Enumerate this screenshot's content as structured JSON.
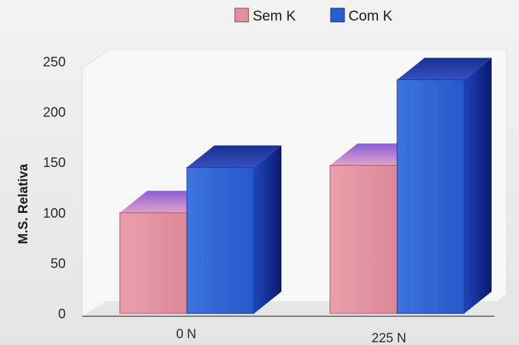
{
  "chart_data": {
    "type": "bar",
    "categories": [
      "0 N",
      "225 N"
    ],
    "series": [
      {
        "name": "Sem K",
        "values": [
          100,
          147
        ],
        "color": "#e58e9c"
      },
      {
        "name": "Com K",
        "values": [
          145,
          232
        ],
        "color": "#2a5fd0"
      }
    ],
    "ylabel": "M.S. Relativa",
    "ylim": [
      0,
      250
    ],
    "yticks": [
      0,
      50,
      100,
      150,
      200,
      250
    ],
    "legend": "top",
    "grid": false,
    "style": "3d"
  }
}
